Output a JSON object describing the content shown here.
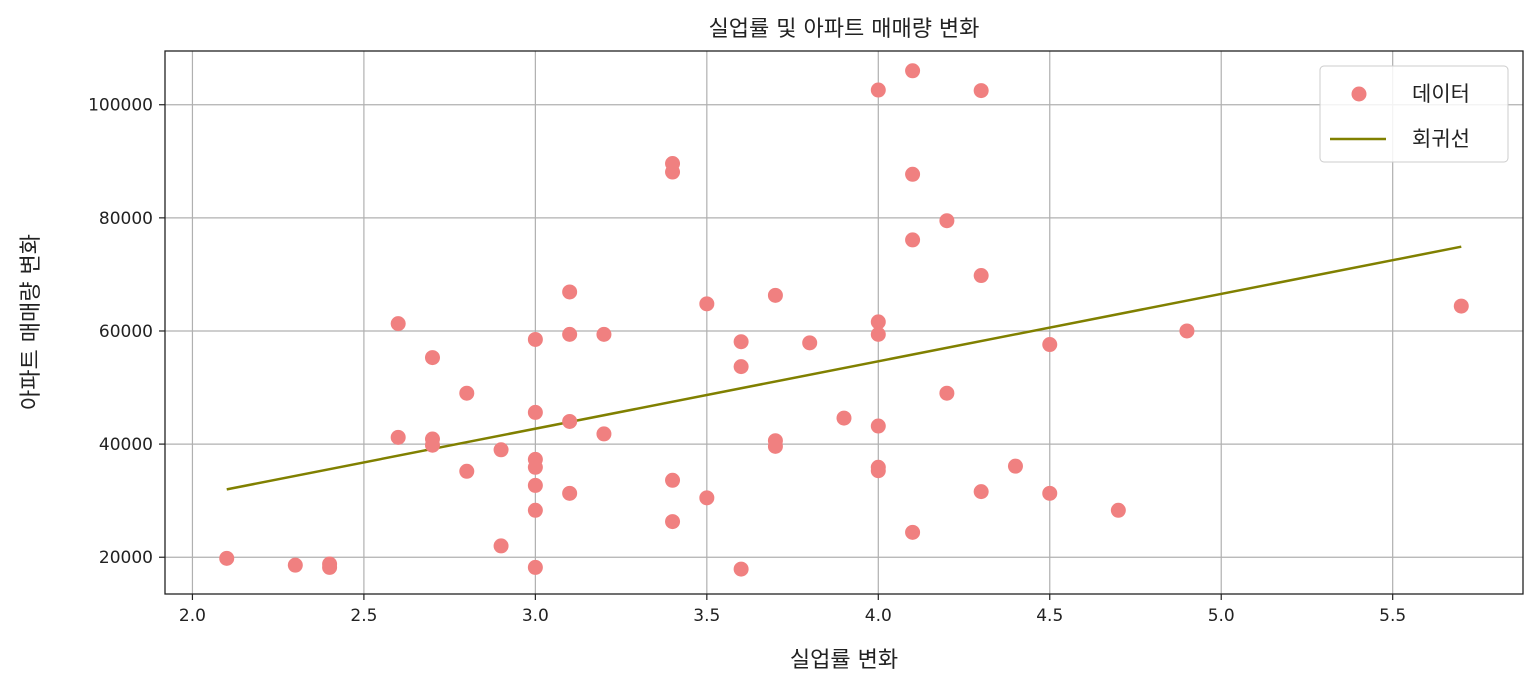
{
  "chart_data": {
    "type": "scatter",
    "title": "실업률 및 아파트 매매량 변화",
    "xlabel": "실업률 변화",
    "ylabel": "아파트 매매량 변화",
    "xlim": [
      1.92,
      5.88
    ],
    "ylim": [
      13500,
      109500
    ],
    "xticks": [
      "2.0",
      "2.5",
      "3.0",
      "3.5",
      "4.0",
      "4.5",
      "5.0",
      "5.5"
    ],
    "yticks": [
      "20000",
      "40000",
      "60000",
      "80000",
      "100000"
    ],
    "grid": true,
    "legend_position": "top-right",
    "series": [
      {
        "name": "데이터",
        "kind": "scatter",
        "color": "#f08080",
        "points": [
          [
            2.1,
            19800
          ],
          [
            2.3,
            18600
          ],
          [
            2.4,
            18800
          ],
          [
            2.4,
            18200
          ],
          [
            2.6,
            61300
          ],
          [
            2.6,
            41200
          ],
          [
            2.7,
            55300
          ],
          [
            2.7,
            40900
          ],
          [
            2.7,
            39800
          ],
          [
            2.8,
            49000
          ],
          [
            2.8,
            35200
          ],
          [
            2.9,
            39000
          ],
          [
            2.9,
            22000
          ],
          [
            3.0,
            58500
          ],
          [
            3.0,
            45600
          ],
          [
            3.0,
            37300
          ],
          [
            3.0,
            35900
          ],
          [
            3.0,
            32700
          ],
          [
            3.0,
            28300
          ],
          [
            3.0,
            18200
          ],
          [
            3.1,
            66900
          ],
          [
            3.1,
            59400
          ],
          [
            3.1,
            44000
          ],
          [
            3.1,
            31300
          ],
          [
            3.2,
            59400
          ],
          [
            3.2,
            41800
          ],
          [
            3.4,
            89600
          ],
          [
            3.4,
            88100
          ],
          [
            3.4,
            33600
          ],
          [
            3.4,
            26300
          ],
          [
            3.5,
            64800
          ],
          [
            3.5,
            30500
          ],
          [
            3.6,
            58100
          ],
          [
            3.6,
            53700
          ],
          [
            3.6,
            17900
          ],
          [
            3.7,
            66300
          ],
          [
            3.7,
            40600
          ],
          [
            3.7,
            39600
          ],
          [
            3.8,
            57900
          ],
          [
            3.9,
            44600
          ],
          [
            4.0,
            102600
          ],
          [
            4.0,
            61600
          ],
          [
            4.0,
            59400
          ],
          [
            4.0,
            43200
          ],
          [
            4.0,
            35900
          ],
          [
            4.0,
            35300
          ],
          [
            4.1,
            106000
          ],
          [
            4.1,
            87700
          ],
          [
            4.1,
            76100
          ],
          [
            4.1,
            24400
          ],
          [
            4.2,
            79500
          ],
          [
            4.2,
            49000
          ],
          [
            4.3,
            102500
          ],
          [
            4.3,
            69800
          ],
          [
            4.3,
            31600
          ],
          [
            4.4,
            36100
          ],
          [
            4.5,
            57600
          ],
          [
            4.5,
            31300
          ],
          [
            4.7,
            28300
          ],
          [
            4.9,
            60000
          ],
          [
            5.7,
            64400
          ]
        ]
      },
      {
        "name": "회귀선",
        "kind": "line",
        "color": "#808000",
        "x": [
          2.1,
          5.7
        ],
        "y": [
          32000,
          74900
        ]
      }
    ]
  }
}
